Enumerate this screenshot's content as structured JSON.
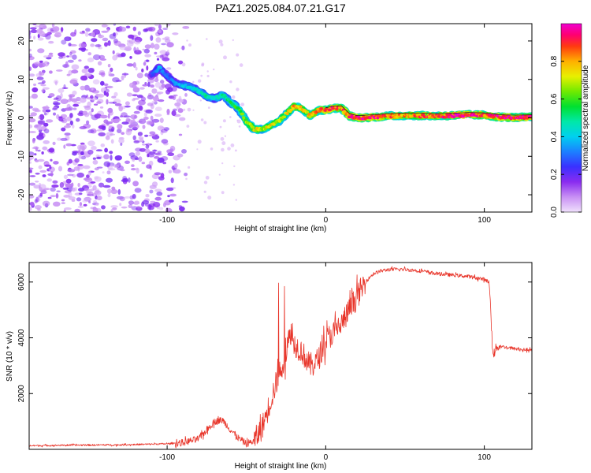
{
  "title": "PAZ1.2025.084.07.21.G17",
  "chart_data": [
    {
      "type": "heatmap",
      "xlabel": "Height of straight line (km)",
      "ylabel": "Frequency (Hz)",
      "xlim": [
        -187,
        130
      ],
      "ylim": [
        -24.5,
        24.5
      ],
      "xticks": [
        -100,
        0,
        100
      ],
      "yticks": [
        -20,
        -10,
        0,
        10,
        20
      ],
      "colorbar": {
        "label": "Normalized spectral amplitude",
        "range": [
          0,
          1
        ],
        "ticks": [
          "0.0",
          "0.2",
          "0.4",
          "0.6",
          "0.8"
        ],
        "colors": [
          "#e8d4f8",
          "#b070f0",
          "#7a1ef0",
          "#3030ff",
          "#00b8ff",
          "#00e8c8",
          "#00e040",
          "#a0f000",
          "#f0f000",
          "#ffa000",
          "#ff3000",
          "#ff0060",
          "#f000c8"
        ]
      },
      "ridge": {
        "height_km": [
          -110,
          -105,
          -100,
          -95,
          -90,
          -85,
          -80,
          -75,
          -70,
          -65,
          -60,
          -55,
          -50,
          -45,
          -40,
          -35,
          -30,
          -25,
          -20,
          -15,
          -10,
          -5,
          0,
          5,
          10,
          15,
          20,
          30,
          40,
          50,
          60,
          70,
          80,
          90,
          100,
          110,
          120,
          130
        ],
        "freq_hz": [
          11,
          13,
          11,
          9,
          8.5,
          8,
          7,
          5.5,
          5,
          6,
          4,
          2.5,
          -1,
          -3,
          -3,
          -2,
          -1,
          1,
          3,
          2.5,
          0.5,
          2,
          2,
          2.5,
          2.5,
          0.5,
          0,
          0.2,
          0.5,
          0.6,
          0.6,
          0.5,
          0.6,
          0.8,
          0.7,
          0.2,
          0.1,
          0.2
        ],
        "amplitude": [
          0.25,
          0.4,
          0.3,
          0.35,
          0.4,
          0.45,
          0.45,
          0.5,
          0.45,
          0.5,
          0.55,
          0.6,
          0.7,
          0.8,
          0.7,
          0.8,
          0.7,
          0.75,
          0.85,
          0.8,
          0.8,
          0.85,
          0.9,
          0.95,
          0.9,
          0.95,
          1.0,
          0.95,
          0.9,
          0.85,
          0.9,
          0.9,
          1.0,
          1.0,
          0.9,
          1.0,
          1.0,
          0.95
        ]
      }
    },
    {
      "type": "line",
      "xlabel": "Height of straight line (km)",
      "ylabel": "SNR (10 * v/v)",
      "xlim": [
        -187,
        130
      ],
      "ylim": [
        0,
        6700
      ],
      "xticks": [
        -100,
        0,
        100
      ],
      "yticks": [
        2000,
        4000,
        6000
      ],
      "color": "#e8352a",
      "series": [
        {
          "x": [
            -187,
            -160,
            -130,
            -100,
            -90,
            -80,
            -75,
            -70,
            -65,
            -60,
            -55,
            -50,
            -45,
            -40,
            -35,
            -30,
            -25,
            -22,
            -20,
            -15,
            -10,
            -5,
            0,
            5,
            10,
            15,
            20,
            25,
            30,
            35,
            40,
            50,
            60,
            70,
            80,
            90,
            100,
            103,
            104,
            105,
            106,
            108,
            110,
            115,
            120,
            130
          ],
          "y": [
            130,
            150,
            160,
            200,
            240,
            380,
            700,
            1000,
            1050,
            700,
            400,
            200,
            300,
            800,
            1700,
            2600,
            3400,
            4200,
            3800,
            3500,
            3000,
            3200,
            3900,
            4200,
            4500,
            5000,
            5500,
            6000,
            6300,
            6400,
            6450,
            6450,
            6400,
            6300,
            6250,
            6200,
            6100,
            6000,
            5000,
            3800,
            3400,
            3700,
            3700,
            3650,
            3600,
            3550
          ]
        }
      ]
    }
  ]
}
